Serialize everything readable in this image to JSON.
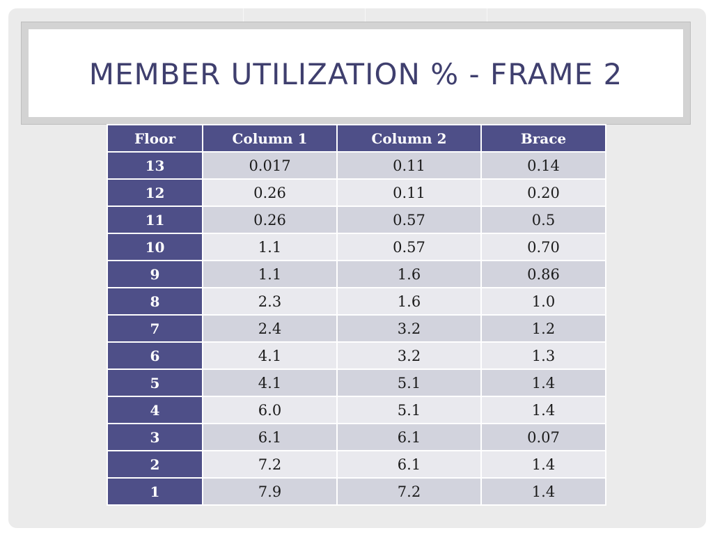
{
  "title": "MEMBER UTILIZATION % - FRAME 2",
  "table": {
    "headers": [
      "Floor",
      "Column 1",
      "Column 2",
      "Brace"
    ],
    "rows": [
      [
        "13",
        "0.017",
        "0.11",
        "0.14"
      ],
      [
        "12",
        "0.26",
        "0.11",
        "0.20"
      ],
      [
        "11",
        "0.26",
        "0.57",
        "0.5"
      ],
      [
        "10",
        "1.1",
        "0.57",
        "0.70"
      ],
      [
        "9",
        "1.1",
        "1.6",
        "0.86"
      ],
      [
        "8",
        "2.3",
        "1.6",
        "1.0"
      ],
      [
        "7",
        "2.4",
        "3.2",
        "1.2"
      ],
      [
        "6",
        "4.1",
        "3.2",
        "1.3"
      ],
      [
        "5",
        "4.1",
        "5.1",
        "1.4"
      ],
      [
        "4",
        "6.0",
        "5.1",
        "1.4"
      ],
      [
        "3",
        "6.1",
        "6.1",
        "0.07"
      ],
      [
        "2",
        "7.2",
        "6.1",
        "1.4"
      ],
      [
        "1",
        "7.9",
        "7.2",
        "1.4"
      ]
    ]
  },
  "colors": {
    "header_bg": "#4e4f88",
    "title_text": "#3f3f6e",
    "row_band_dark": "#d2d3dd",
    "row_band_light": "#e9e9ee"
  }
}
